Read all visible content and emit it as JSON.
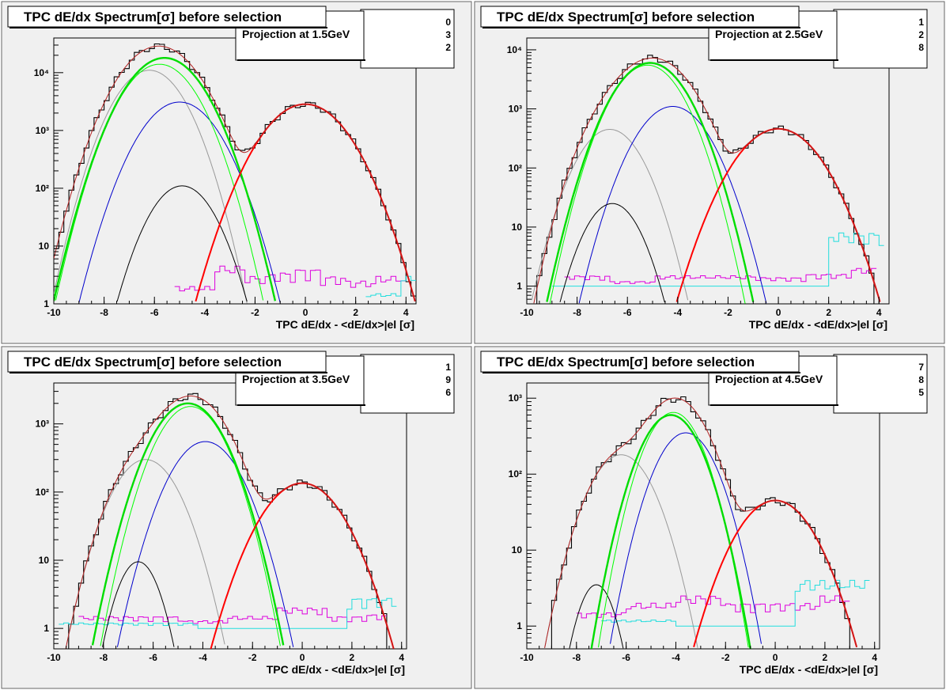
{
  "colors": {
    "pad_bg": "#f0f0f0",
    "axis": "#000000",
    "total_fit": "#b22222",
    "electron": "#ff0000",
    "pion": "#00dd00",
    "pion_thin": "#00ff00",
    "kaon": "#0000cc",
    "proton": "#999999",
    "deuteron": "#000000",
    "magenta": "#dd00dd",
    "cyan": "#22dddd"
  },
  "chart_data": [
    {
      "type": "line",
      "title": "TPC dE/dx Spectrum[σ] before selection",
      "stats_label": "Projection at 1.5GeV",
      "stats_digits": [
        "0",
        "3",
        "2"
      ],
      "xlabel": "TPC dE/dx - <dE/dx>|el [σ]",
      "x_ticks": [
        "-10",
        "-8",
        "-6",
        "-4",
        "-2",
        "0",
        "2",
        "4"
      ],
      "y_tick_labels": [
        "1",
        "10",
        "10²",
        "10³",
        "10⁴"
      ],
      "y_scale": "log",
      "xlim": [
        -10,
        4.4
      ],
      "ylim_log10": [
        0,
        4.6
      ],
      "components": [
        {
          "name": "total",
          "peaks": [
            [
              -5.9,
              27000,
              1.0
            ],
            [
              -4.9,
              3000,
              0.95
            ],
            [
              0.0,
              2850,
              1.1
            ]
          ]
        },
        {
          "name": "pion_thick",
          "peaks": [
            [
              -5.6,
              18000,
              1.0
            ]
          ]
        },
        {
          "name": "pion_thin",
          "peaks": [
            [
              -5.8,
              14000,
              0.95
            ]
          ]
        },
        {
          "name": "proton",
          "peaks": [
            [
              -6.2,
              11000,
              0.9
            ]
          ]
        },
        {
          "name": "kaon",
          "peaks": [
            [
              -5.0,
              3100,
              1.0
            ]
          ]
        },
        {
          "name": "deuteron",
          "peaks": [
            [
              -4.9,
              110,
              0.85
            ]
          ]
        },
        {
          "name": "electron",
          "peaks": [
            [
              0.0,
              2850,
              1.1
            ]
          ]
        }
      ],
      "bg_magenta": [
        {
          "x": -4.2,
          "v": 2.0
        },
        {
          "x": -3.0,
          "v": 4.5
        },
        {
          "x": -2.0,
          "v": 3.0
        },
        {
          "x": -1.0,
          "v": 3.5
        },
        {
          "x": 0.0,
          "v": 4.0
        },
        {
          "x": 1.0,
          "v": 3.0
        },
        {
          "x": 2.0,
          "v": 2.5
        },
        {
          "x": 3.5,
          "v": 3.0
        }
      ],
      "bg_cyan": [
        {
          "x": 3.4,
          "v": 1.5
        },
        {
          "x": 4.0,
          "v": 3.0
        }
      ]
    },
    {
      "type": "line",
      "title": "TPC dE/dx Spectrum[σ] before selection",
      "stats_label": "Projection at 2.5GeV",
      "stats_digits": [
        "1",
        "2",
        "8"
      ],
      "xlabel": "TPC dE/dx - <dE/dx>|el [σ]",
      "x_ticks": [
        "-10",
        "-8",
        "-6",
        "-4",
        "-2",
        "0",
        "2",
        "4"
      ],
      "y_tick_labels": [
        "1",
        "10",
        "10²",
        "10³",
        "10⁴"
      ],
      "y_scale": "log",
      "xlim": [
        -10,
        4.4
      ],
      "ylim_log10": [
        -0.3,
        4.2
      ],
      "components": [
        {
          "name": "total",
          "peaks": [
            [
              -5.1,
              6500,
              1.0
            ],
            [
              -4.2,
              1100,
              0.9
            ],
            [
              -6.7,
              450,
              0.8
            ],
            [
              0.0,
              460,
              1.1
            ]
          ]
        },
        {
          "name": "pion_thick",
          "peaks": [
            [
              -5.1,
              6000,
              0.95
            ]
          ]
        },
        {
          "name": "pion_thin",
          "peaks": [
            [
              -5.2,
              5500,
              0.9
            ]
          ]
        },
        {
          "name": "proton",
          "peaks": [
            [
              -6.7,
              450,
              0.85
            ]
          ]
        },
        {
          "name": "kaon",
          "peaks": [
            [
              -4.2,
              1100,
              0.95
            ]
          ]
        },
        {
          "name": "deuteron",
          "peaks": [
            [
              -6.6,
              25,
              0.75
            ]
          ]
        },
        {
          "name": "electron",
          "peaks": [
            [
              0.0,
              460,
              1.1
            ]
          ]
        }
      ],
      "bg_magenta": [
        {
          "x": -7.5,
          "v": 1.5
        },
        {
          "x": -6.0,
          "v": 1.2
        },
        {
          "x": -4.0,
          "v": 1.5
        },
        {
          "x": -2.0,
          "v": 1.5
        },
        {
          "x": 0.0,
          "v": 1.4
        },
        {
          "x": 2.0,
          "v": 1.6
        },
        {
          "x": 3.5,
          "v": 2.0
        }
      ],
      "bg_cyan": [
        {
          "x": -8.0,
          "v": 1.0
        },
        {
          "x": 0.0,
          "v": 1.0
        },
        {
          "x": 3.8,
          "v": 8.0
        }
      ]
    },
    {
      "type": "line",
      "title": "TPC dE/dx Spectrum[σ] before selection",
      "stats_label": "Projection at 3.5GeV",
      "stats_digits": [
        "1",
        "9",
        "6"
      ],
      "xlabel": "TPC dE/dx - <dE/dx>|el [σ]",
      "x_ticks": [
        "-10",
        "-8",
        "-6",
        "-4",
        "-2",
        "0",
        "2",
        "4"
      ],
      "y_tick_labels": [
        "1",
        "10",
        "10²",
        "10³"
      ],
      "y_scale": "log",
      "xlim": [
        -10,
        4.2
      ],
      "ylim_log10": [
        -0.3,
        3.6
      ],
      "components": [
        {
          "name": "total",
          "peaks": [
            [
              -4.6,
              2100,
              0.95
            ],
            [
              -6.3,
              300,
              0.9
            ],
            [
              -3.9,
              550,
              0.9
            ],
            [
              0.0,
              135,
              1.1
            ]
          ]
        },
        {
          "name": "pion_thick",
          "peaks": [
            [
              -4.6,
              2000,
              0.95
            ]
          ]
        },
        {
          "name": "pion_thin",
          "peaks": [
            [
              -4.5,
              1800,
              0.9
            ]
          ]
        },
        {
          "name": "proton",
          "peaks": [
            [
              -6.3,
              300,
              0.9
            ]
          ]
        },
        {
          "name": "kaon",
          "peaks": [
            [
              -3.9,
              550,
              0.95
            ]
          ]
        },
        {
          "name": "deuteron",
          "peaks": [
            [
              -6.6,
              9.5,
              0.6
            ]
          ]
        },
        {
          "name": "electron",
          "peaks": [
            [
              0.0,
              135,
              1.1
            ]
          ]
        }
      ],
      "bg_magenta": [
        {
          "x": -8.0,
          "v": 1.5
        },
        {
          "x": -6.0,
          "v": 1.5
        },
        {
          "x": -4.0,
          "v": 1.3
        },
        {
          "x": -2.0,
          "v": 1.5
        },
        {
          "x": 0.0,
          "v": 2.0
        },
        {
          "x": 2.0,
          "v": 1.5
        },
        {
          "x": 3.0,
          "v": 1.6
        }
      ],
      "bg_cyan": [
        {
          "x": -8.8,
          "v": 1.2
        },
        {
          "x": 0.0,
          "v": 1.0
        },
        {
          "x": 3.3,
          "v": 2.8
        }
      ]
    },
    {
      "type": "line",
      "title": "TPC dE/dx Spectrum[σ] before selection",
      "stats_label": "Projection at 4.5GeV",
      "stats_digits": [
        "7",
        "8",
        "5"
      ],
      "xlabel": "TPC dE/dx - <dE/dx>|el [σ]",
      "x_ticks": [
        "-10",
        "-8",
        "-6",
        "-4",
        "-2",
        "0",
        "2",
        "4"
      ],
      "y_tick_labels": [
        "1",
        "10",
        "10²",
        "10³"
      ],
      "y_scale": "log",
      "xlim": [
        -10,
        4.2
      ],
      "ylim_log10": [
        -0.3,
        3.2
      ],
      "components": [
        {
          "name": "total",
          "peaks": [
            [
              -4.2,
              700,
              0.85
            ],
            [
              -6.2,
              180,
              0.9
            ],
            [
              -3.6,
              350,
              0.85
            ],
            [
              0.0,
              45,
              1.1
            ]
          ]
        },
        {
          "name": "pion_thick",
          "peaks": [
            [
              -4.2,
              600,
              0.85
            ]
          ]
        },
        {
          "name": "pion_thin",
          "peaks": [
            [
              -4.1,
              650,
              0.8
            ]
          ]
        },
        {
          "name": "proton",
          "peaks": [
            [
              -6.2,
              180,
              0.9
            ]
          ]
        },
        {
          "name": "kaon",
          "peaks": [
            [
              -3.6,
              350,
              0.85
            ]
          ]
        },
        {
          "name": "deuteron",
          "peaks": [
            [
              -7.2,
              3.5,
              0.55
            ]
          ]
        },
        {
          "name": "electron",
          "peaks": [
            [
              0.0,
              45,
              1.1
            ]
          ]
        }
      ],
      "bg_magenta": [
        {
          "x": -7.0,
          "v": 1.5
        },
        {
          "x": -5.0,
          "v": 2.0
        },
        {
          "x": -3.0,
          "v": 2.5
        },
        {
          "x": -1.0,
          "v": 2.0
        },
        {
          "x": 1.0,
          "v": 2.0
        },
        {
          "x": 2.5,
          "v": 2.5
        }
      ],
      "bg_cyan": [
        {
          "x": -6.0,
          "v": 1.2
        },
        {
          "x": -2.0,
          "v": 1.0
        },
        {
          "x": 3.3,
          "v": 4.0
        }
      ]
    }
  ]
}
